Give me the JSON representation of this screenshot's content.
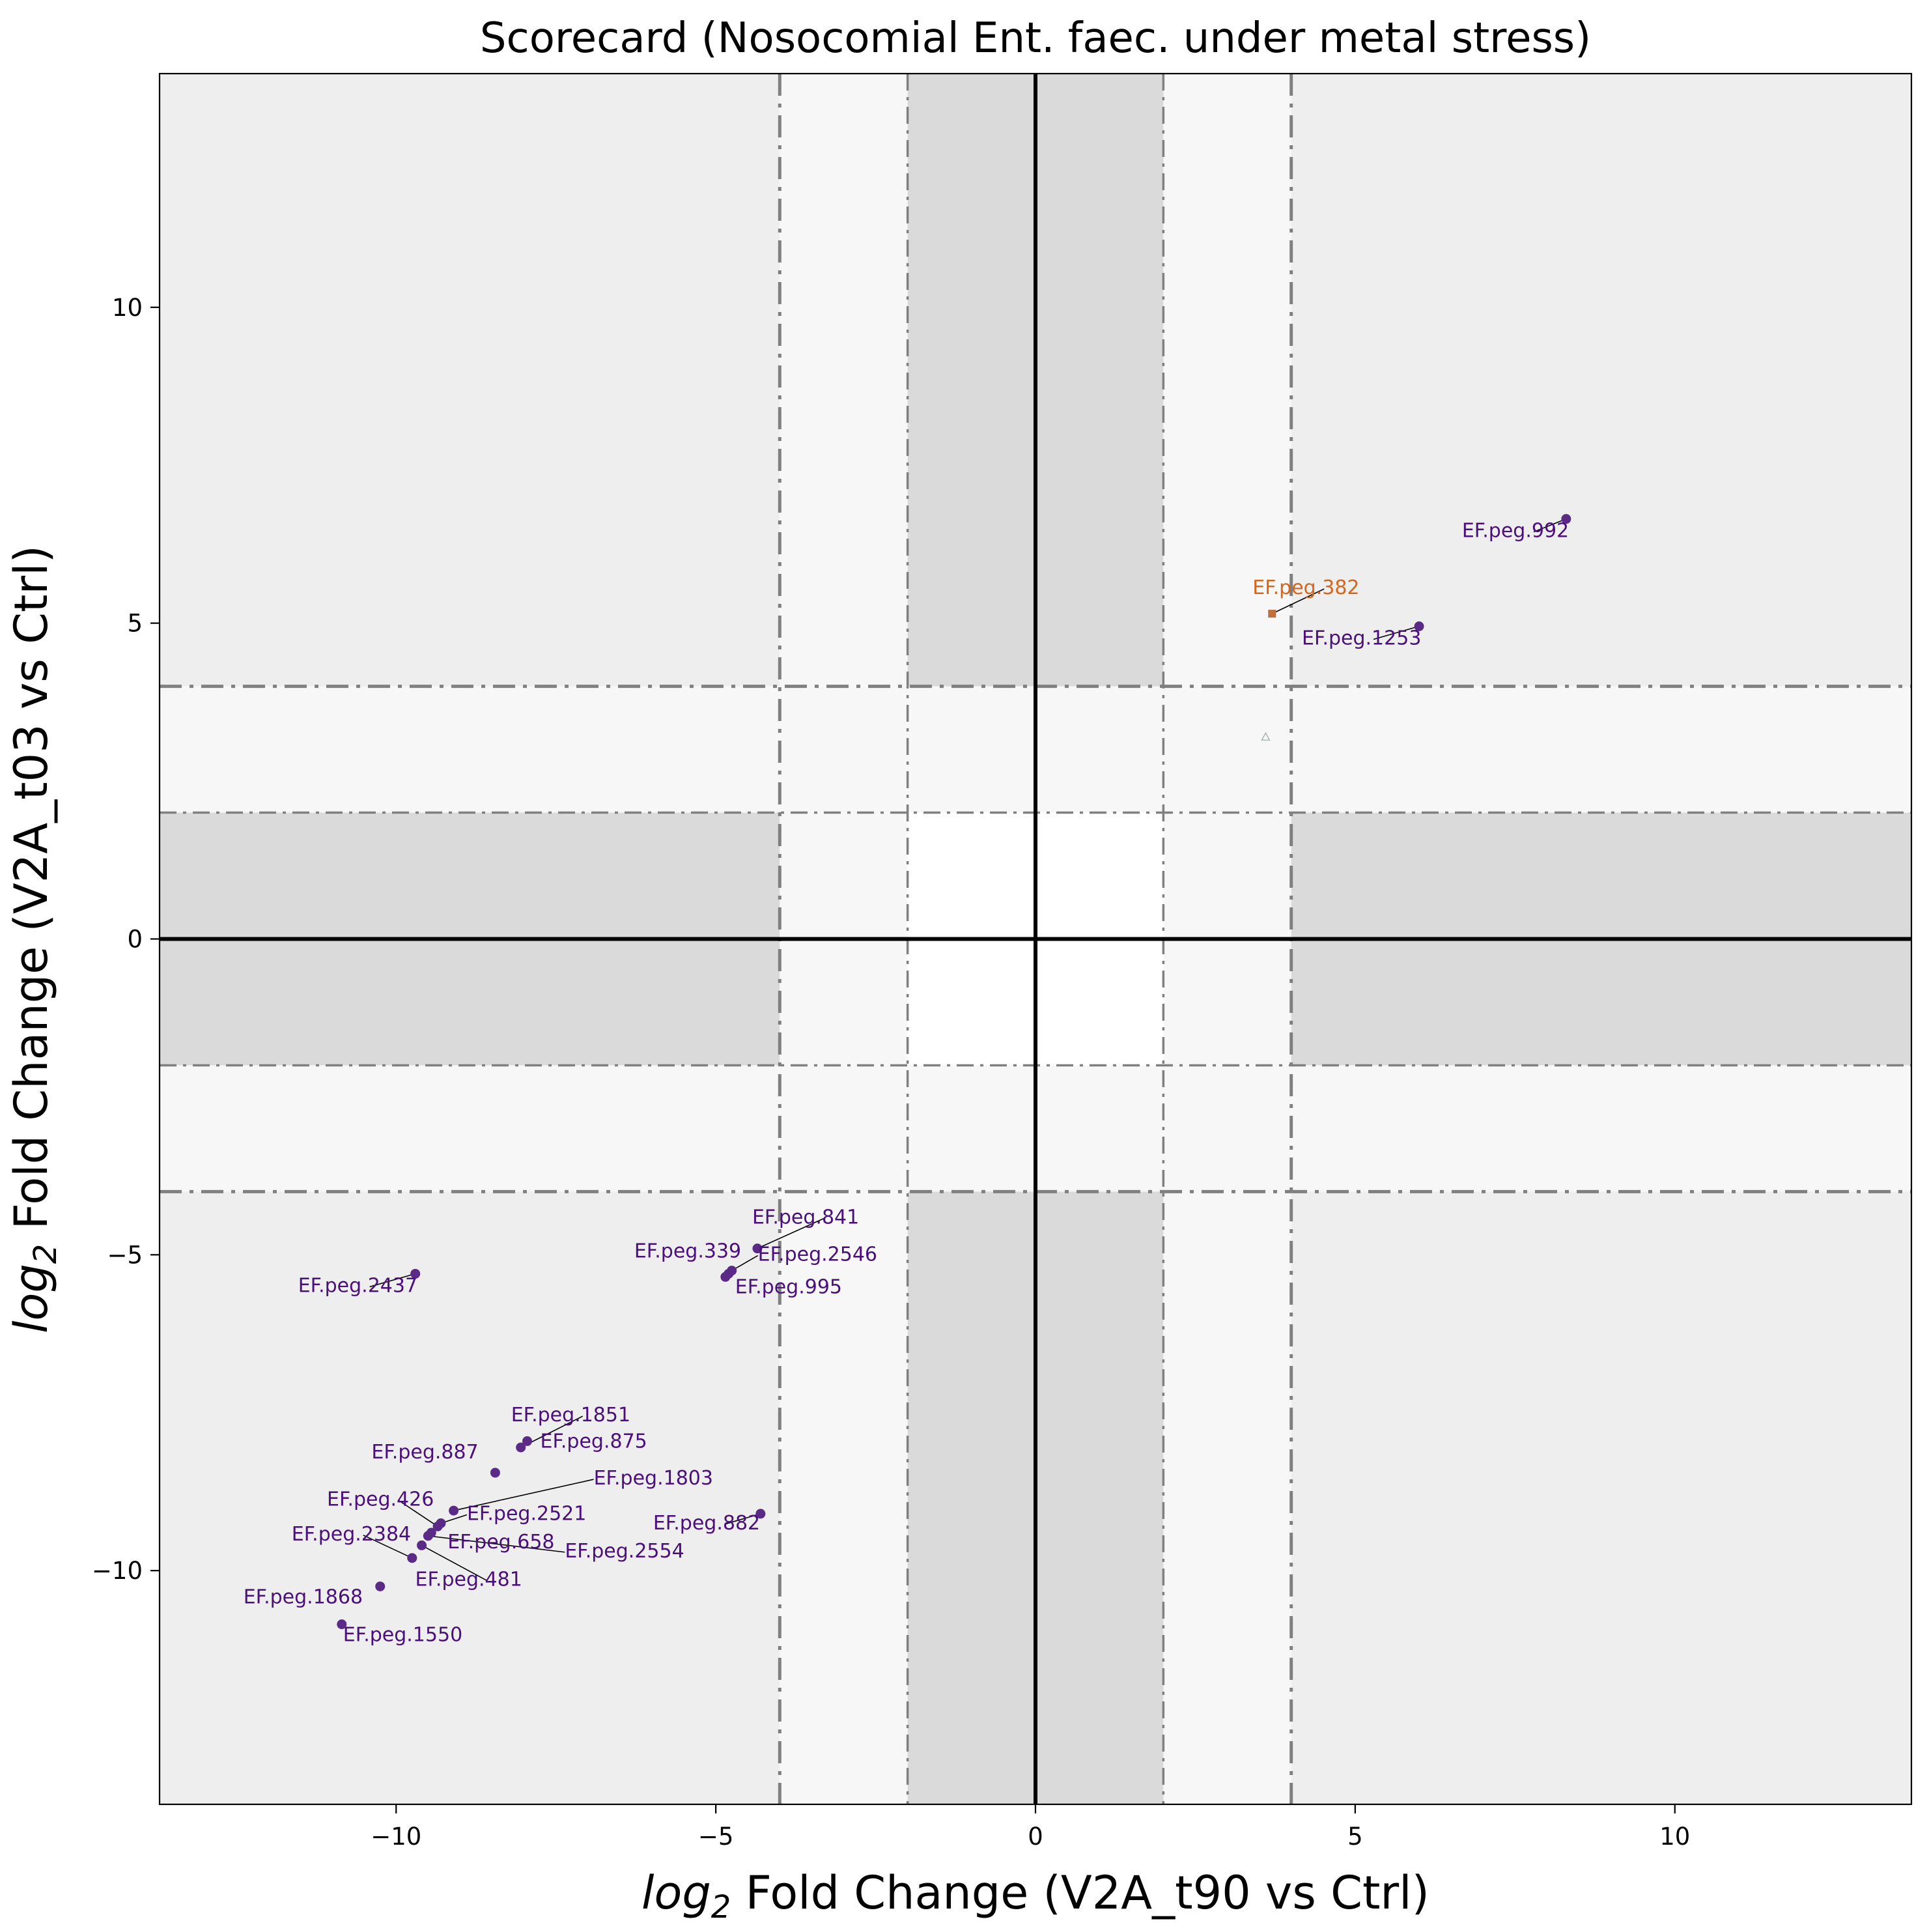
{
  "chart_data": {
    "type": "scatter",
    "title": "Scorecard (Nosocomial Ent. faec. under metal stress)",
    "xlabel_math": "log",
    "xlabel_sub": "2",
    "xlabel_rest": " Fold Change (V2A_t90 vs Ctrl)",
    "ylabel_math": "log",
    "ylabel_sub": "2",
    "ylabel_rest": " Fold Change (V2A_t03 vs Ctrl)",
    "xlim": [
      -13.7,
      13.7
    ],
    "ylim": [
      -13.7,
      13.7
    ],
    "xticks": [
      -10,
      -5,
      0,
      5,
      10
    ],
    "yticks": [
      -10,
      -5,
      0,
      5,
      10
    ],
    "xtick_labels": [
      "−10",
      "−5",
      "0",
      "5",
      "10"
    ],
    "ytick_labels": [
      "−10",
      "−5",
      "0",
      "5",
      "10"
    ],
    "inner_threshold": 2,
    "outer_threshold": 4,
    "grid": false,
    "colors": {
      "purple": "#5a2a86",
      "purple_text": "#4b0f7d",
      "orange": "#c0703e",
      "orange_text": "#d7661a",
      "pale": "#cfe3e0",
      "band_dark": "#dadada",
      "band_mid": "#eeeeee",
      "band_light": "#f7f7f7",
      "threshold_line": "#808080"
    },
    "points": [
      {
        "label": "EF.peg.992",
        "x": 8.3,
        "y": 6.65,
        "color": "purple"
      },
      {
        "label": "EF.peg.1253",
        "x": 6.0,
        "y": 4.95,
        "color": "purple"
      },
      {
        "label": "EF.peg.382",
        "x": 3.7,
        "y": 5.15,
        "color": "orange"
      },
      {
        "label": "",
        "x": 3.6,
        "y": 3.2,
        "color": "pale"
      },
      {
        "label": "EF.peg.841",
        "x": -4.35,
        "y": -4.9,
        "color": "purple"
      },
      {
        "label": "EF.peg.339",
        "x": -4.85,
        "y": -5.35,
        "color": "purple"
      },
      {
        "label": "EF.peg.2546",
        "x": -4.75,
        "y": -5.25,
        "color": "purple"
      },
      {
        "label": "EF.peg.995",
        "x": -4.8,
        "y": -5.3,
        "color": "purple"
      },
      {
        "label": "EF.peg.2437",
        "x": -9.7,
        "y": -5.3,
        "color": "purple"
      },
      {
        "label": "EF.peg.1851",
        "x": -8.05,
        "y": -8.05,
        "color": "purple"
      },
      {
        "label": "EF.peg.875",
        "x": -7.95,
        "y": -7.95,
        "color": "purple"
      },
      {
        "label": "EF.peg.887",
        "x": -8.45,
        "y": -8.45,
        "color": "purple"
      },
      {
        "label": "EF.peg.882",
        "x": -4.3,
        "y": -9.1,
        "color": "purple"
      },
      {
        "label": "EF.peg.1803",
        "x": -9.1,
        "y": -9.05,
        "color": "purple"
      },
      {
        "label": "EF.peg.2521",
        "x": -9.3,
        "y": -9.25,
        "color": "purple"
      },
      {
        "label": "EF.peg.426",
        "x": -9.35,
        "y": -9.3,
        "color": "purple"
      },
      {
        "label": "EF.peg.658",
        "x": -9.45,
        "y": -9.4,
        "color": "purple"
      },
      {
        "label": "EF.peg.2554",
        "x": -9.5,
        "y": -9.45,
        "color": "purple"
      },
      {
        "label": "EF.peg.481",
        "x": -9.6,
        "y": -9.6,
        "color": "purple"
      },
      {
        "label": "EF.peg.2384",
        "x": -9.75,
        "y": -9.8,
        "color": "purple"
      },
      {
        "label": "EF.peg.1868",
        "x": -10.25,
        "y": -10.25,
        "color": "purple"
      },
      {
        "label": "EF.peg.1550",
        "x": -10.85,
        "y": -10.85,
        "color": "purple"
      }
    ]
  }
}
